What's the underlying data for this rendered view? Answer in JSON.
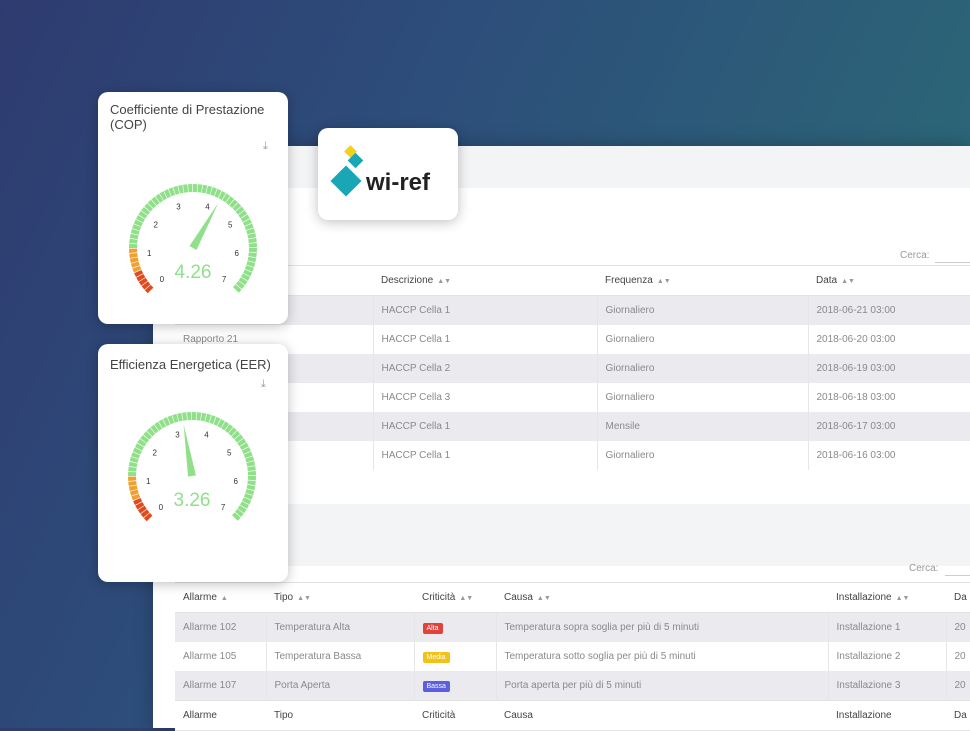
{
  "logo": {
    "text": "wi-ref"
  },
  "reports": {
    "search_label": "Cerca:",
    "headers": [
      "",
      "Descrizione",
      "Frequenza",
      "Data"
    ],
    "rows": [
      {
        "name": "",
        "desc": "HACCP Cella 1",
        "freq": "Giornaliero",
        "date": "2018-06-21 03:00"
      },
      {
        "name": "Rapporto 21",
        "desc": "HACCP Cella 1",
        "freq": "Giornaliero",
        "date": "2018-06-20 03:00"
      },
      {
        "name": "",
        "desc": "HACCP Cella 2",
        "freq": "Giornaliero",
        "date": "2018-06-19 03:00"
      },
      {
        "name": "",
        "desc": "HACCP Cella 3",
        "freq": "Giornaliero",
        "date": "2018-06-18 03:00"
      },
      {
        "name": "",
        "desc": "HACCP Cella 1",
        "freq": "Mensile",
        "date": "2018-06-17 03:00"
      },
      {
        "name": "",
        "desc": "HACCP Cella 1",
        "freq": "Giornaliero",
        "date": "2018-06-16 03:00"
      }
    ]
  },
  "alarms": {
    "search_label": "Cerca:",
    "headers": [
      "Allarme",
      "Tipo",
      "Criticità",
      "Causa",
      "Installazione",
      "Da"
    ],
    "footer": [
      "Allarme",
      "Tipo",
      "Criticità",
      "Causa",
      "Installazione",
      "Da"
    ],
    "rows": [
      {
        "name": "Allarme 102",
        "type": "Temperatura Alta",
        "crit": "Alta",
        "crit_color": "#e0433a",
        "cause": "Temperatura sopra soglia per più di 5 minuti",
        "inst": "Installazione 1",
        "date": "20"
      },
      {
        "name": "Allarme 105",
        "type": "Temperatura Bassa",
        "crit": "Media",
        "crit_color": "#f1c21b",
        "cause": "Temperatura sotto soglia per più di 5 minuti",
        "inst": "Installazione 2",
        "date": "20"
      },
      {
        "name": "Allarme 107",
        "type": "Porta Aperta",
        "crit": "Bassa",
        "crit_color": "#5b5fe0",
        "cause": "Porta aperta per più di 5 minuti",
        "inst": "Installazione 3",
        "date": "20"
      }
    ]
  },
  "gauges": [
    {
      "title": "Coefficiente di Prestazione (COP)",
      "value": 4.26,
      "value_label": "4.26",
      "min": 0,
      "max": 7,
      "ticks": [
        "0",
        "1",
        "2",
        "3",
        "4",
        "5",
        "6",
        "7"
      ]
    },
    {
      "title": "Efficienza Energetica (EER)",
      "value": 3.26,
      "value_label": "3.26",
      "min": 0,
      "max": 7,
      "ticks": [
        "0",
        "1",
        "2",
        "3",
        "4",
        "5",
        "6",
        "7"
      ]
    }
  ],
  "colors": {
    "gauge_green": "#90e08a",
    "gauge_orange": "#f0a030",
    "gauge_red": "#e04b1e",
    "link": "#6ab4e0"
  },
  "icons": {
    "download": "download-icon"
  }
}
